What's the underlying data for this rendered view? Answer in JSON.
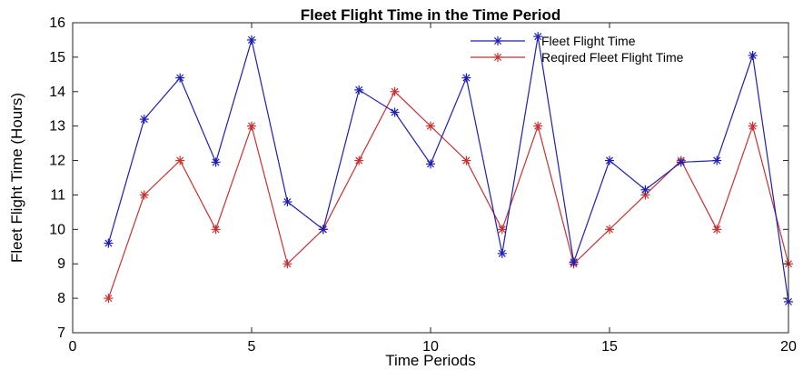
{
  "chart_data": {
    "type": "line",
    "title": "Fleet Flight Time in the Time Period",
    "xlabel": "Time Periods",
    "ylabel": "Fleet Flight Time (Hours)",
    "xlim": [
      0,
      20
    ],
    "ylim": [
      7,
      16
    ],
    "xticks": [
      0,
      5,
      10,
      15,
      20
    ],
    "yticks": [
      7,
      8,
      9,
      10,
      11,
      12,
      13,
      14,
      15,
      16
    ],
    "grid": false,
    "legend_position": "top-right",
    "x": [
      1,
      2,
      3,
      4,
      5,
      6,
      7,
      8,
      9,
      10,
      11,
      12,
      13,
      14,
      15,
      16,
      17,
      18,
      19,
      20
    ],
    "series": [
      {
        "name": "Fleet Flight Time",
        "color": "#1f1fb4",
        "marker": "asterisk",
        "values": [
          9.6,
          13.2,
          14.4,
          11.95,
          15.5,
          10.8,
          10.0,
          14.05,
          13.4,
          11.9,
          14.4,
          9.3,
          15.6,
          9.05,
          12.0,
          11.15,
          11.95,
          12.0,
          15.05,
          7.9
        ]
      },
      {
        "name": "Reqired Fleet Flight Time",
        "color": "#c83232",
        "marker": "asterisk",
        "values": [
          8,
          11,
          12,
          10,
          13,
          9,
          10,
          12,
          14,
          13,
          12,
          10,
          13,
          9,
          10,
          11,
          12,
          10,
          13,
          9
        ]
      }
    ]
  }
}
